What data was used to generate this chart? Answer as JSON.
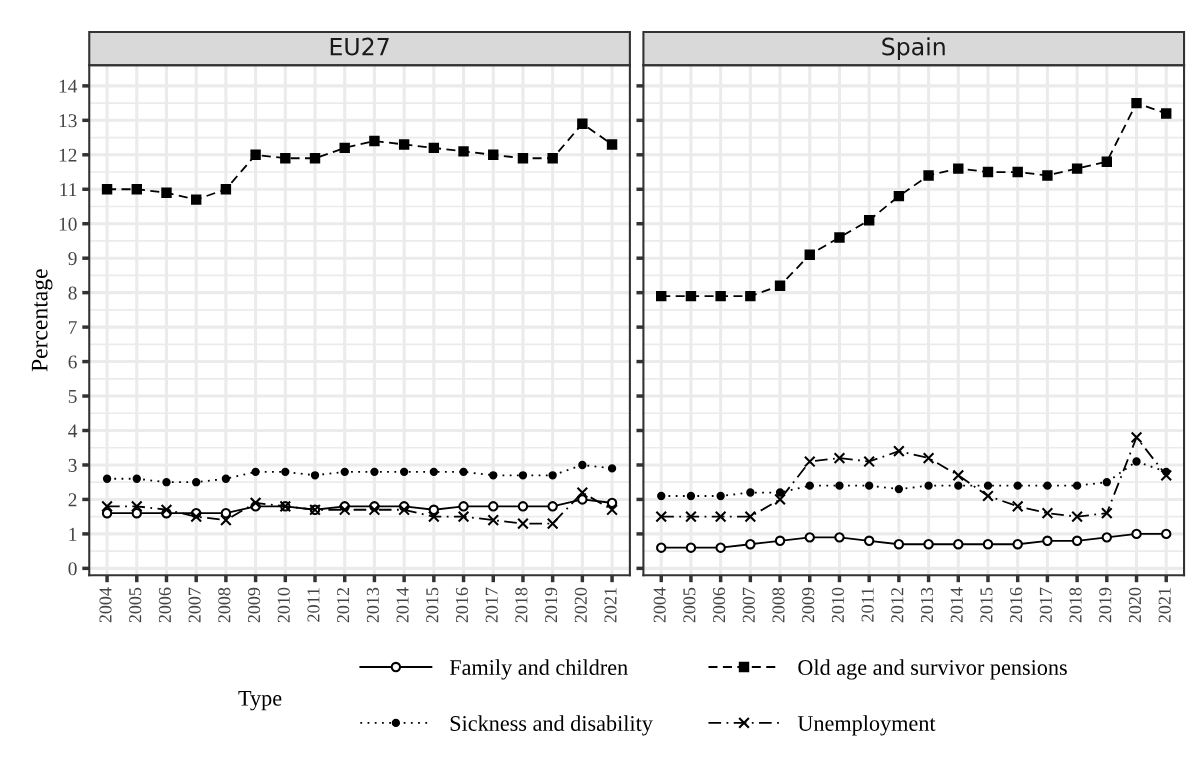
{
  "chart_data": [
    {
      "type": "line",
      "title": "EU27",
      "ylabel": "Percentage",
      "legend_title": "Type",
      "legend": "bottom",
      "grid": true,
      "categories": [
        "2004",
        "2005",
        "2006",
        "2007",
        "2008",
        "2009",
        "2010",
        "2011",
        "2012",
        "2013",
        "2014",
        "2015",
        "2016",
        "2017",
        "2018",
        "2019",
        "2020",
        "2021"
      ],
      "ylim": [
        -0.2,
        14.6
      ],
      "yticks": [
        0,
        1,
        2,
        3,
        4,
        5,
        6,
        7,
        8,
        9,
        10,
        11,
        12,
        13,
        14
      ],
      "series": [
        {
          "name": "Family and children",
          "color": "#000000",
          "marker": "circle",
          "line_style": "solid",
          "values": [
            1.6,
            1.6,
            1.6,
            1.6,
            1.6,
            1.8,
            1.8,
            1.7,
            1.8,
            1.8,
            1.8,
            1.7,
            1.8,
            1.8,
            1.8,
            1.8,
            2.0,
            1.9
          ]
        },
        {
          "name": "Old age and survivor pensions",
          "color": "#000000",
          "marker": "square",
          "line_style": "dashed",
          "values": [
            11.0,
            11.0,
            10.9,
            10.7,
            11.0,
            12.0,
            11.9,
            11.9,
            12.2,
            12.4,
            12.3,
            12.2,
            12.1,
            12.0,
            11.9,
            11.9,
            12.9,
            12.3
          ]
        },
        {
          "name": "Sickness and disability",
          "color": "#000000",
          "marker": "circle",
          "line_style": "dotted",
          "values": [
            2.6,
            2.6,
            2.5,
            2.5,
            2.6,
            2.8,
            2.8,
            2.7,
            2.8,
            2.8,
            2.8,
            2.8,
            2.8,
            2.7,
            2.7,
            2.7,
            3.0,
            2.9
          ]
        },
        {
          "name": "Unemployment",
          "color": "#000000",
          "marker": "cross",
          "line_style": "dashdot",
          "values": [
            1.8,
            1.8,
            1.7,
            1.5,
            1.4,
            1.9,
            1.8,
            1.7,
            1.7,
            1.7,
            1.7,
            1.5,
            1.5,
            1.4,
            1.3,
            1.3,
            2.2,
            1.7
          ]
        }
      ]
    },
    {
      "type": "line",
      "title": "Spain",
      "grid": true,
      "tick_labels": "x",
      "categories": [
        "2004",
        "2005",
        "2006",
        "2007",
        "2008",
        "2009",
        "2010",
        "2011",
        "2012",
        "2013",
        "2014",
        "2015",
        "2016",
        "2017",
        "2018",
        "2019",
        "2020",
        "2021"
      ],
      "ylim": [
        -0.2,
        14.6
      ],
      "yticks": [
        0,
        1,
        2,
        3,
        4,
        5,
        6,
        7,
        8,
        9,
        10,
        11,
        12,
        13,
        14
      ],
      "series": [
        {
          "name": "Family and children",
          "color": "#000000",
          "marker": "circle",
          "line_style": "solid",
          "values": [
            0.6,
            0.6,
            0.6,
            0.7,
            0.8,
            0.9,
            0.9,
            0.8,
            0.7,
            0.7,
            0.7,
            0.7,
            0.7,
            0.8,
            0.8,
            0.9,
            1.0,
            1.0
          ]
        },
        {
          "name": "Old age and survivor pensions",
          "color": "#000000",
          "marker": "square",
          "line_style": "dashed",
          "values": [
            7.9,
            7.9,
            7.9,
            7.9,
            8.2,
            9.1,
            9.6,
            10.1,
            10.8,
            11.4,
            11.6,
            11.5,
            11.5,
            11.4,
            11.6,
            11.8,
            13.5,
            13.2
          ]
        },
        {
          "name": "Sickness and disability",
          "color": "#000000",
          "marker": "circle",
          "line_style": "dotted",
          "values": [
            2.1,
            2.1,
            2.1,
            2.2,
            2.2,
            2.4,
            2.4,
            2.4,
            2.3,
            2.4,
            2.4,
            2.4,
            2.4,
            2.4,
            2.4,
            2.5,
            3.1,
            2.8
          ]
        },
        {
          "name": "Unemployment",
          "color": "#000000",
          "marker": "cross",
          "line_style": "dashdot",
          "values": [
            1.5,
            1.5,
            1.5,
            1.5,
            2.0,
            3.1,
            3.2,
            3.1,
            3.4,
            3.2,
            2.7,
            2.1,
            1.8,
            1.6,
            1.5,
            1.6,
            3.8,
            2.7
          ]
        }
      ]
    }
  ]
}
